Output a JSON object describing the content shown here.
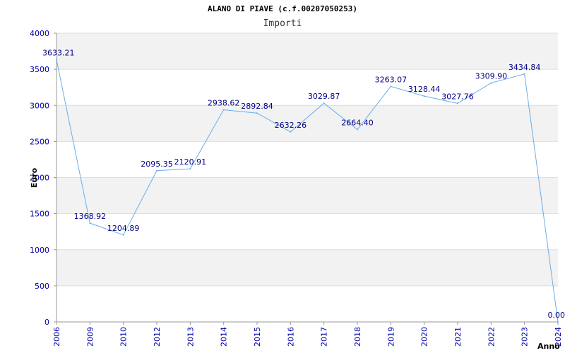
{
  "chart_data": {
    "type": "line",
    "title": "ALANO DI PIAVE (c.f.00207050253)",
    "subtitle": "Importi",
    "ylabel": "Euro",
    "xlabel": "Anno",
    "categories": [
      "2006",
      "2009",
      "2010",
      "2012",
      "2013",
      "2014",
      "2015",
      "2016",
      "2017",
      "2018",
      "2019",
      "2020",
      "2021",
      "2022",
      "2023",
      "2024"
    ],
    "values": [
      3633.21,
      1368.92,
      1204.89,
      2095.35,
      2120.91,
      2938.62,
      2892.84,
      2632.26,
      3029.87,
      2664.4,
      3263.07,
      3128.44,
      3027.76,
      3309.9,
      3434.84,
      0.0
    ],
    "value_labels": [
      "3633.21",
      "1368.92",
      "1204.89",
      "2095.35",
      "2120.91",
      "2938.62",
      "2892.84",
      "2632.26",
      "3029.87",
      "2664.40",
      "3263.07",
      "3128.44",
      "3027.76",
      "3309.90",
      "3434.84",
      "0.00"
    ],
    "ylim": [
      0,
      4000
    ],
    "yticks": [
      "0",
      "500",
      "1000",
      "1500",
      "2000",
      "2500",
      "3000",
      "3500",
      "4000"
    ],
    "grid": true,
    "colors": {
      "line": "#6aaee8",
      "band": "#f2f2f2",
      "grid": "#dddddd",
      "tick_text": "#0000aa"
    }
  }
}
